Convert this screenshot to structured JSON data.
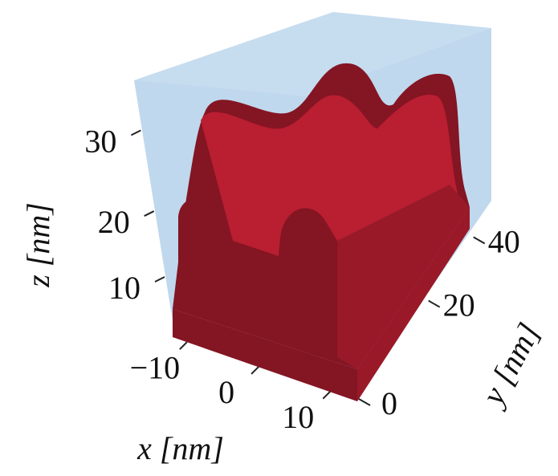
{
  "chart_data": {
    "type": "volume",
    "xlabel": "x [nm]",
    "ylabel": "y [nm]",
    "zlabel": "z [nm]",
    "xlim": [
      -12,
      14
    ],
    "xticks": [
      {
        "value": -10,
        "label": "−10"
      },
      0,
      10
    ],
    "ylim": [
      0,
      50
    ],
    "yticks": [
      0,
      20,
      40
    ],
    "zlim": [
      0,
      35
    ],
    "zticks": [
      10,
      20,
      30
    ],
    "colors": {
      "surface": "#a11a2b",
      "box": "#bcd6ec"
    }
  }
}
